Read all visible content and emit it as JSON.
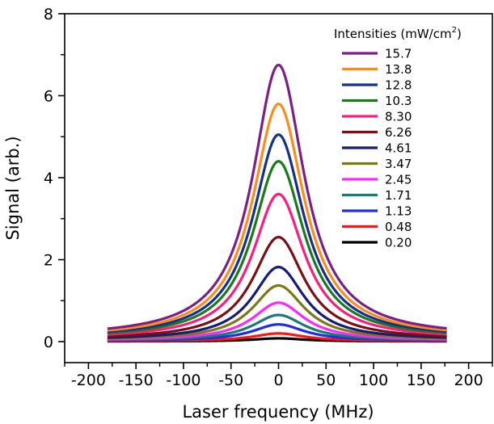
{
  "chart_data": {
    "type": "line",
    "xlabel": "Laser frequency (MHz)",
    "ylabel": "Signal (arb.)",
    "xlim": [
      -225,
      225
    ],
    "ylim": [
      -0.1,
      8
    ],
    "x_ticks": [
      -200,
      -150,
      -100,
      -50,
      0,
      50,
      100,
      150,
      200
    ],
    "y_ticks": [
      0,
      2,
      4,
      6,
      8
    ],
    "x_range": [
      -180,
      177
    ],
    "grid": false,
    "legend": {
      "title_prefix": "Intensities (mW/cm",
      "title_sup": "2",
      "title_suffix": ")",
      "placement": "top-right"
    },
    "series": [
      {
        "name": "15.7",
        "color": "#7b1f86",
        "peak": 6.75,
        "baseline": 0.1
      },
      {
        "name": "13.8",
        "color": "#ff8c1a",
        "peak": 5.8,
        "baseline": 0.09
      },
      {
        "name": "12.8",
        "color": "#14308f",
        "peak": 5.05,
        "baseline": 0.08
      },
      {
        "name": "10.3",
        "color": "#1a7a1a",
        "peak": 4.4,
        "baseline": 0.07
      },
      {
        "name": "8.30",
        "color": "#ff1c7c",
        "peak": 3.6,
        "baseline": 0.06
      },
      {
        "name": "6.26",
        "color": "#7a0f14",
        "peak": 2.55,
        "baseline": 0.05
      },
      {
        "name": "4.61",
        "color": "#141c78",
        "peak": 1.82,
        "baseline": 0.04
      },
      {
        "name": "3.47",
        "color": "#7a7a14",
        "peak": 1.37,
        "baseline": 0.035
      },
      {
        "name": "2.45",
        "color": "#ff28ff",
        "peak": 0.95,
        "baseline": 0.03
      },
      {
        "name": "1.71",
        "color": "#1a7a7a",
        "peak": 0.65,
        "baseline": 0.025
      },
      {
        "name": "1.13",
        "color": "#1f2ce0",
        "peak": 0.42,
        "baseline": 0.02
      },
      {
        "name": "0.48",
        "color": "#ff1414",
        "peak": 0.2,
        "baseline": 0.01
      },
      {
        "name": "0.20",
        "color": "#000000",
        "peak": 0.08,
        "baseline": 0.005
      }
    ]
  }
}
